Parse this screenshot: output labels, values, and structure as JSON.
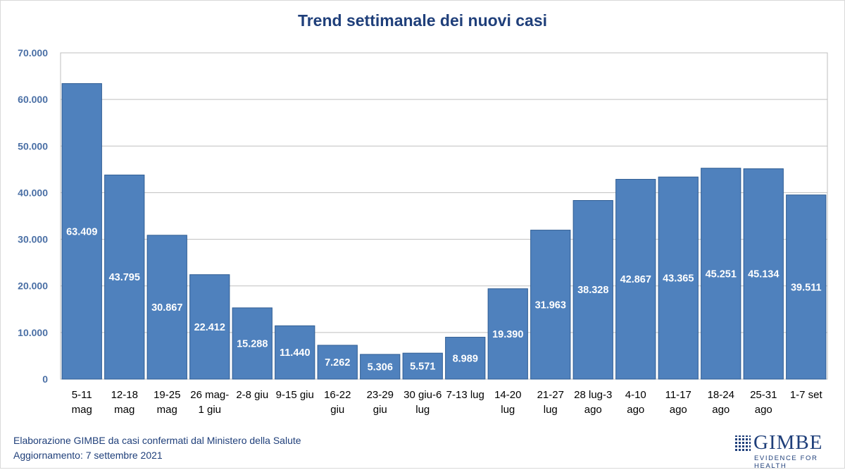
{
  "title": "Trend settimanale dei nuovi casi",
  "footnote": {
    "line1": "Elaborazione GIMBE da casi confermati dal Ministero della Salute",
    "line2": "Aggiornamento: 7 settembre 2021"
  },
  "logo": {
    "word": "GIMBE",
    "tagline": "EVIDENCE FOR HEALTH"
  },
  "colors": {
    "bar": "#4f81bd",
    "bar_edge": "#2f5d93",
    "title": "#1f3f7a",
    "grid": "#bfbfbf",
    "tick_label": "#4a6fa5"
  },
  "chart_data": {
    "type": "bar",
    "title": "Trend settimanale dei nuovi casi",
    "xlabel": "",
    "ylabel": "",
    "ylim": [
      0,
      70000
    ],
    "yticks": [
      "0",
      "10.000",
      "20.000",
      "30.000",
      "40.000",
      "50.000",
      "60.000",
      "70.000"
    ],
    "grid": true,
    "categories": [
      [
        "5-11",
        "mag"
      ],
      [
        "12-18",
        "mag"
      ],
      [
        "19-25",
        "mag"
      ],
      [
        "26 mag-",
        "1 giu"
      ],
      [
        "2-8 giu"
      ],
      [
        "9-15 giu"
      ],
      [
        "16-22",
        "giu"
      ],
      [
        "23-29",
        "giu"
      ],
      [
        "30 giu-6",
        "lug"
      ],
      [
        "7-13 lug"
      ],
      [
        "14-20",
        "lug"
      ],
      [
        "21-27",
        "lug"
      ],
      [
        "28 lug-3",
        "ago"
      ],
      [
        "4-10",
        "ago"
      ],
      [
        "11-17",
        "ago"
      ],
      [
        "18-24",
        "ago"
      ],
      [
        "25-31",
        "ago"
      ],
      [
        "1-7 set"
      ]
    ],
    "values": [
      63409,
      43795,
      30867,
      22412,
      15288,
      11440,
      7262,
      5306,
      5571,
      8989,
      19390,
      31963,
      38328,
      42867,
      43365,
      45251,
      45134,
      39511
    ],
    "value_labels": [
      "63.409",
      "43.795",
      "30.867",
      "22.412",
      "15.288",
      "11.440",
      "7.262",
      "5.306",
      "5.571",
      "8.989",
      "19.390",
      "31.963",
      "38.328",
      "42.867",
      "43.365",
      "45.251",
      "45.134",
      "39.511"
    ]
  }
}
